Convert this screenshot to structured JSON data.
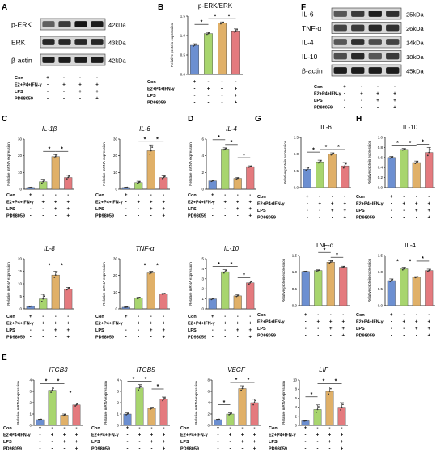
{
  "panel_labels": [
    "A",
    "B",
    "C",
    "D",
    "E",
    "F",
    "G",
    "H"
  ],
  "row_labels": {
    "con": "Con",
    "e2": "E2+P4+IFN-γ",
    "lps": "LPS",
    "pd": "PD98059"
  },
  "conditions": [
    {
      "con": "+",
      "e2": "-",
      "lps": "-",
      "pd": "-"
    },
    {
      "con": "-",
      "e2": "+",
      "lps": "-",
      "pd": "-"
    },
    {
      "con": "-",
      "e2": "+",
      "lps": "+",
      "pd": "-"
    },
    {
      "con": "-",
      "e2": "+",
      "lps": "+",
      "pd": "+"
    }
  ],
  "bar_colors": [
    "#6c8fd1",
    "#a8d56e",
    "#e0b068",
    "#e47a7e"
  ],
  "sig_marker": "*",
  "blot_A": {
    "bands": [
      {
        "label": "p-ERK",
        "kda": "42kDa",
        "intensity": [
          0.55,
          0.75,
          0.95,
          0.9
        ]
      },
      {
        "label": "ERK",
        "kda": "43kDa",
        "intensity": [
          0.85,
          0.85,
          0.85,
          0.85
        ]
      },
      {
        "label": "β-actin",
        "kda": "42kDa",
        "intensity": [
          0.9,
          0.9,
          0.9,
          0.9
        ]
      }
    ]
  },
  "blot_F": {
    "bands": [
      {
        "label": "IL-6",
        "kda": "25kDa",
        "intensity": [
          0.6,
          0.75,
          0.9,
          0.8
        ]
      },
      {
        "label": "TNF-α",
        "kda": "26kDa",
        "intensity": [
          0.7,
          0.75,
          0.85,
          0.8
        ]
      },
      {
        "label": "IL-4",
        "kda": "14kDa",
        "intensity": [
          0.6,
          0.8,
          0.65,
          0.7
        ]
      },
      {
        "label": "IL-10",
        "kda": "18kDa",
        "intensity": [
          0.65,
          0.85,
          0.6,
          0.75
        ]
      },
      {
        "label": "β-actin",
        "kda": "45kDa",
        "intensity": [
          0.9,
          0.9,
          0.9,
          0.9
        ]
      }
    ]
  },
  "chart_data": [
    {
      "id": "B",
      "type": "bar",
      "title": "p-ERK/ERK",
      "title_italic": false,
      "ylabel": "Relative protein expression",
      "ylim": [
        0,
        1.5
      ],
      "yticks": [
        0,
        0.5,
        1.0,
        1.5
      ],
      "yticklabels": [
        "0.0",
        "0.5",
        "1.0",
        "1.5"
      ],
      "values": [
        0.75,
        1.05,
        1.32,
        1.12
      ],
      "errors": [
        0.04,
        0.03,
        0.03,
        0.05
      ],
      "sig": [
        [
          1,
          2,
          0
        ],
        [
          2,
          3,
          0
        ],
        [
          0,
          1,
          1
        ]
      ]
    },
    {
      "id": "C1",
      "type": "bar",
      "title": "IL-1β",
      "title_italic": true,
      "ylabel": "Relative mRNA expression",
      "ylim": [
        0,
        30
      ],
      "yticks": [
        0,
        10,
        20,
        30
      ],
      "yticklabels": [
        "0",
        "10",
        "20",
        "30"
      ],
      "values": [
        1,
        4.5,
        19.5,
        7
      ],
      "errors": [
        0.2,
        1.5,
        1.2,
        1.3
      ],
      "sig": [
        [
          1,
          2,
          0
        ],
        [
          2,
          3,
          0
        ]
      ]
    },
    {
      "id": "C2",
      "type": "bar",
      "title": "IL-6",
      "title_italic": true,
      "ylabel": "Relative mRNA expression",
      "ylim": [
        0,
        30
      ],
      "yticks": [
        0,
        10,
        20,
        30
      ],
      "yticklabels": [
        "0",
        "10",
        "20",
        "30"
      ],
      "values": [
        1,
        4,
        23,
        7
      ],
      "errors": [
        0.2,
        0.8,
        3.5,
        1
      ],
      "sig": [
        [
          1,
          2,
          0
        ],
        [
          2,
          3,
          0
        ]
      ]
    },
    {
      "id": "D1",
      "type": "bar",
      "title": "IL-4",
      "title_italic": true,
      "ylabel": "Relative mRNA expression",
      "ylim": [
        0,
        6
      ],
      "yticks": [
        0,
        2,
        4,
        6
      ],
      "yticklabels": [
        "0",
        "2",
        "4",
        "6"
      ],
      "values": [
        1,
        4.8,
        1.3,
        2.7
      ],
      "errors": [
        0.1,
        0.15,
        0.1,
        0.1
      ],
      "sig": [
        [
          1,
          2,
          0
        ],
        [
          0,
          1,
          1
        ],
        [
          2,
          3,
          1
        ]
      ]
    },
    {
      "id": "G",
      "type": "bar",
      "title": "IL-6",
      "title_italic": false,
      "ylabel": "Relative protein expression",
      "ylim": [
        0,
        1.5
      ],
      "yticks": [
        0,
        0.5,
        1.0,
        1.5
      ],
      "yticklabels": [
        "0.0",
        "0.5",
        "1.0",
        "1.5"
      ],
      "values": [
        0.55,
        0.77,
        1.0,
        0.65
      ],
      "errors": [
        0.06,
        0.05,
        0.04,
        0.1
      ],
      "sig": [
        [
          1,
          2,
          0
        ],
        [
          2,
          3,
          0
        ],
        [
          0,
          1,
          1
        ]
      ]
    },
    {
      "id": "H",
      "type": "bar",
      "title": "IL-10",
      "title_italic": false,
      "ylabel": "Relative protein expression",
      "ylim": [
        0,
        1.0
      ],
      "yticks": [
        0,
        0.2,
        0.4,
        0.6,
        0.8,
        1.0
      ],
      "yticklabels": [
        "0.0",
        "0.2",
        "0.4",
        "0.6",
        "0.8",
        "1.0"
      ],
      "values": [
        0.6,
        0.76,
        0.5,
        0.7
      ],
      "errors": [
        0.02,
        0.02,
        0.03,
        0.1
      ],
      "sig": [
        [
          0,
          1,
          0
        ],
        [
          1,
          2,
          0
        ],
        [
          2,
          3,
          0
        ]
      ]
    },
    {
      "id": "C3",
      "type": "bar",
      "title": "IL-8",
      "title_italic": true,
      "ylabel": "Relative mRNA expression",
      "ylim": [
        0,
        20
      ],
      "yticks": [
        0,
        5,
        10,
        15,
        20
      ],
      "yticklabels": [
        "0",
        "5",
        "10",
        "15",
        "20"
      ],
      "values": [
        1,
        4,
        13.5,
        8
      ],
      "errors": [
        0.2,
        1.8,
        1.5,
        0.6
      ],
      "sig": [
        [
          1,
          2,
          0
        ],
        [
          2,
          3,
          0
        ]
      ]
    },
    {
      "id": "C4",
      "type": "bar",
      "title": "TNF-α",
      "title_italic": true,
      "ylabel": "Relative mRNA expression",
      "ylim": [
        0,
        30
      ],
      "yticks": [
        0,
        10,
        20,
        30
      ],
      "yticklabels": [
        "0",
        "10",
        "20",
        "30"
      ],
      "values": [
        1,
        6.5,
        21.5,
        9
      ],
      "errors": [
        0.2,
        0.5,
        1,
        0.3
      ],
      "sig": [
        [
          1,
          2,
          0
        ],
        [
          2,
          3,
          0
        ]
      ]
    },
    {
      "id": "D2",
      "type": "bar",
      "title": "IL-10",
      "title_italic": true,
      "ylabel": "Relative mRNA expression",
      "ylim": [
        0,
        5
      ],
      "yticks": [
        0,
        1,
        2,
        3,
        4,
        5
      ],
      "yticklabels": [
        "0",
        "1",
        "2",
        "3",
        "4",
        "5"
      ],
      "values": [
        1,
        3.7,
        1.3,
        2.6
      ],
      "errors": [
        0.1,
        0.2,
        0.1,
        0.2
      ],
      "sig": [
        [
          0,
          1,
          0
        ],
        [
          1,
          2,
          0
        ],
        [
          2,
          3,
          0
        ]
      ]
    },
    {
      "id": "G2",
      "type": "bar",
      "title": "TNF-α",
      "title_italic": false,
      "ylabel": "Relative protein expression",
      "ylim": [
        0,
        1.5
      ],
      "yticks": [
        0,
        0.5,
        1.0,
        1.5
      ],
      "yticklabels": [
        "0.0",
        "0.5",
        "1.0",
        "1.5"
      ],
      "values": [
        1.02,
        1.05,
        1.3,
        1.15
      ],
      "errors": [
        0.01,
        0.02,
        0.05,
        0.03
      ],
      "sig": [
        [
          2,
          3,
          0
        ],
        [
          1,
          2,
          1
        ]
      ]
    },
    {
      "id": "H2",
      "type": "bar",
      "title": "IL-4",
      "title_italic": false,
      "ylabel": "Relative protein expression",
      "ylim": [
        0,
        1.5
      ],
      "yticks": [
        0,
        0.5,
        1.0,
        1.5
      ],
      "yticklabels": [
        "0.0",
        "0.5",
        "1.0",
        "1.5"
      ],
      "values": [
        0.75,
        1.1,
        0.85,
        1.05
      ],
      "errors": [
        0.05,
        0.05,
        0.02,
        0.04
      ],
      "sig": [
        [
          0,
          1,
          0
        ],
        [
          1,
          2,
          0
        ],
        [
          2,
          3,
          1
        ]
      ]
    },
    {
      "id": "E1",
      "type": "bar",
      "title": "ITGB3",
      "title_italic": true,
      "ylabel": "Relative mRNA expression",
      "ylim": [
        0,
        4
      ],
      "yticks": [
        0,
        1,
        2,
        3,
        4
      ],
      "yticklabels": [
        "0",
        "1",
        "2",
        "3",
        "4"
      ],
      "values": [
        0.5,
        3.1,
        0.9,
        1.8
      ],
      "errors": [
        0.05,
        0.3,
        0.1,
        0.15
      ],
      "sig": [
        [
          0,
          1,
          0
        ],
        [
          1,
          2,
          0
        ],
        [
          2,
          3,
          1
        ]
      ]
    },
    {
      "id": "E2",
      "type": "bar",
      "title": "ITGB5",
      "title_italic": true,
      "ylabel": "Relative mRNA expression",
      "ylim": [
        0,
        4
      ],
      "yticks": [
        0,
        1,
        2,
        3,
        4
      ],
      "yticklabels": [
        "0",
        "1",
        "2",
        "3",
        "4"
      ],
      "values": [
        1,
        3.3,
        1.5,
        2.3
      ],
      "errors": [
        0.1,
        0.3,
        0.1,
        0.2
      ],
      "sig": [
        [
          0,
          1,
          0
        ],
        [
          1,
          2,
          0
        ],
        [
          2,
          3,
          1
        ]
      ]
    },
    {
      "id": "E3",
      "type": "bar",
      "title": "VEGF",
      "title_italic": true,
      "ylabel": "Relative mRNA expression",
      "ylim": [
        0,
        8
      ],
      "yticks": [
        0,
        2,
        4,
        6,
        8
      ],
      "yticklabels": [
        "0",
        "2",
        "4",
        "6",
        "8"
      ],
      "values": [
        1,
        2,
        6.5,
        4
      ],
      "errors": [
        0.1,
        0.2,
        0.5,
        0.6
      ],
      "sig": [
        [
          1,
          2,
          0
        ],
        [
          2,
          3,
          0
        ],
        [
          0,
          1,
          1
        ]
      ]
    },
    {
      "id": "E4",
      "type": "bar",
      "title": "LIF",
      "title_italic": true,
      "ylabel": "Relative mRNA expression",
      "ylim": [
        0,
        10
      ],
      "yticks": [
        0,
        2,
        4,
        6,
        8,
        10
      ],
      "yticklabels": [
        "0",
        "2",
        "4",
        "6",
        "8",
        "10"
      ],
      "values": [
        1,
        3.5,
        7.5,
        4
      ],
      "errors": [
        0.1,
        1,
        1,
        1
      ],
      "sig": [
        [
          1,
          2,
          0
        ],
        [
          2,
          3,
          0
        ],
        [
          0,
          1,
          1
        ]
      ]
    }
  ]
}
